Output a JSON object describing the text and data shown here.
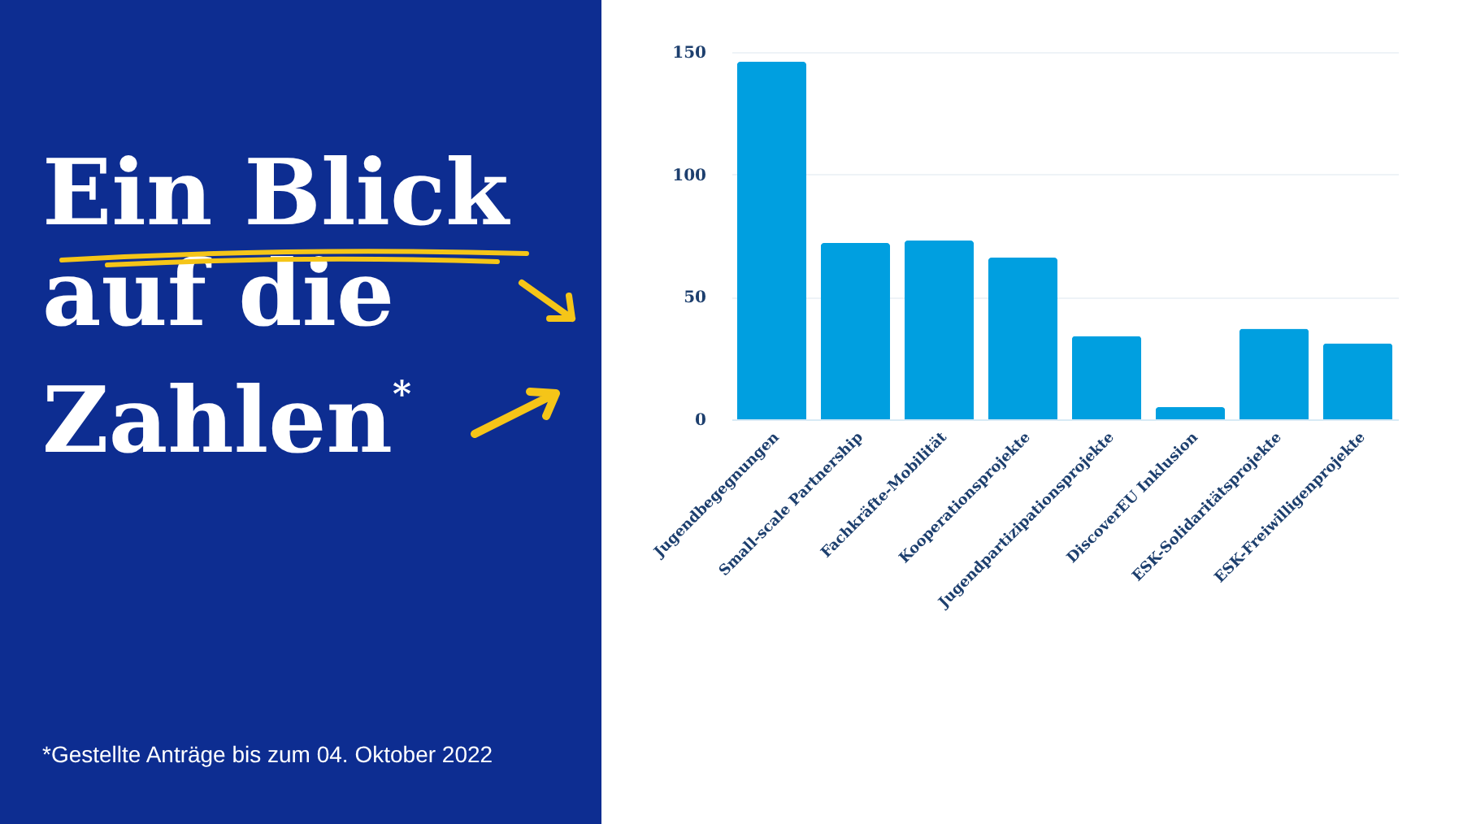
{
  "chart_data": {
    "type": "bar",
    "title": "Ein Blick auf die Zahlen$^{*}$",
    "annotations": [
      "*Gestellte Anträge bis zum 04. Oktober 2022"
    ],
    "categories": [
      "Jugendbegegnungen",
      "Small-scale Partnership",
      "Fachkräfte-Mobilität",
      "Kooperationsprojekte",
      "Jugendpartizipationsprojekte",
      "DiscoverEU Inklusion",
      "ESK-Solidaritätsprojekte",
      "ESK-Freiwilligenprojekte"
    ],
    "values": [
      146,
      72,
      73,
      66,
      34,
      5,
      37,
      31
    ],
    "color": "#009fe0",
    "ylim": [
      0,
      150
    ],
    "yticks": [
      0,
      50,
      100,
      150
    ],
    "grid": "y"
  }
}
